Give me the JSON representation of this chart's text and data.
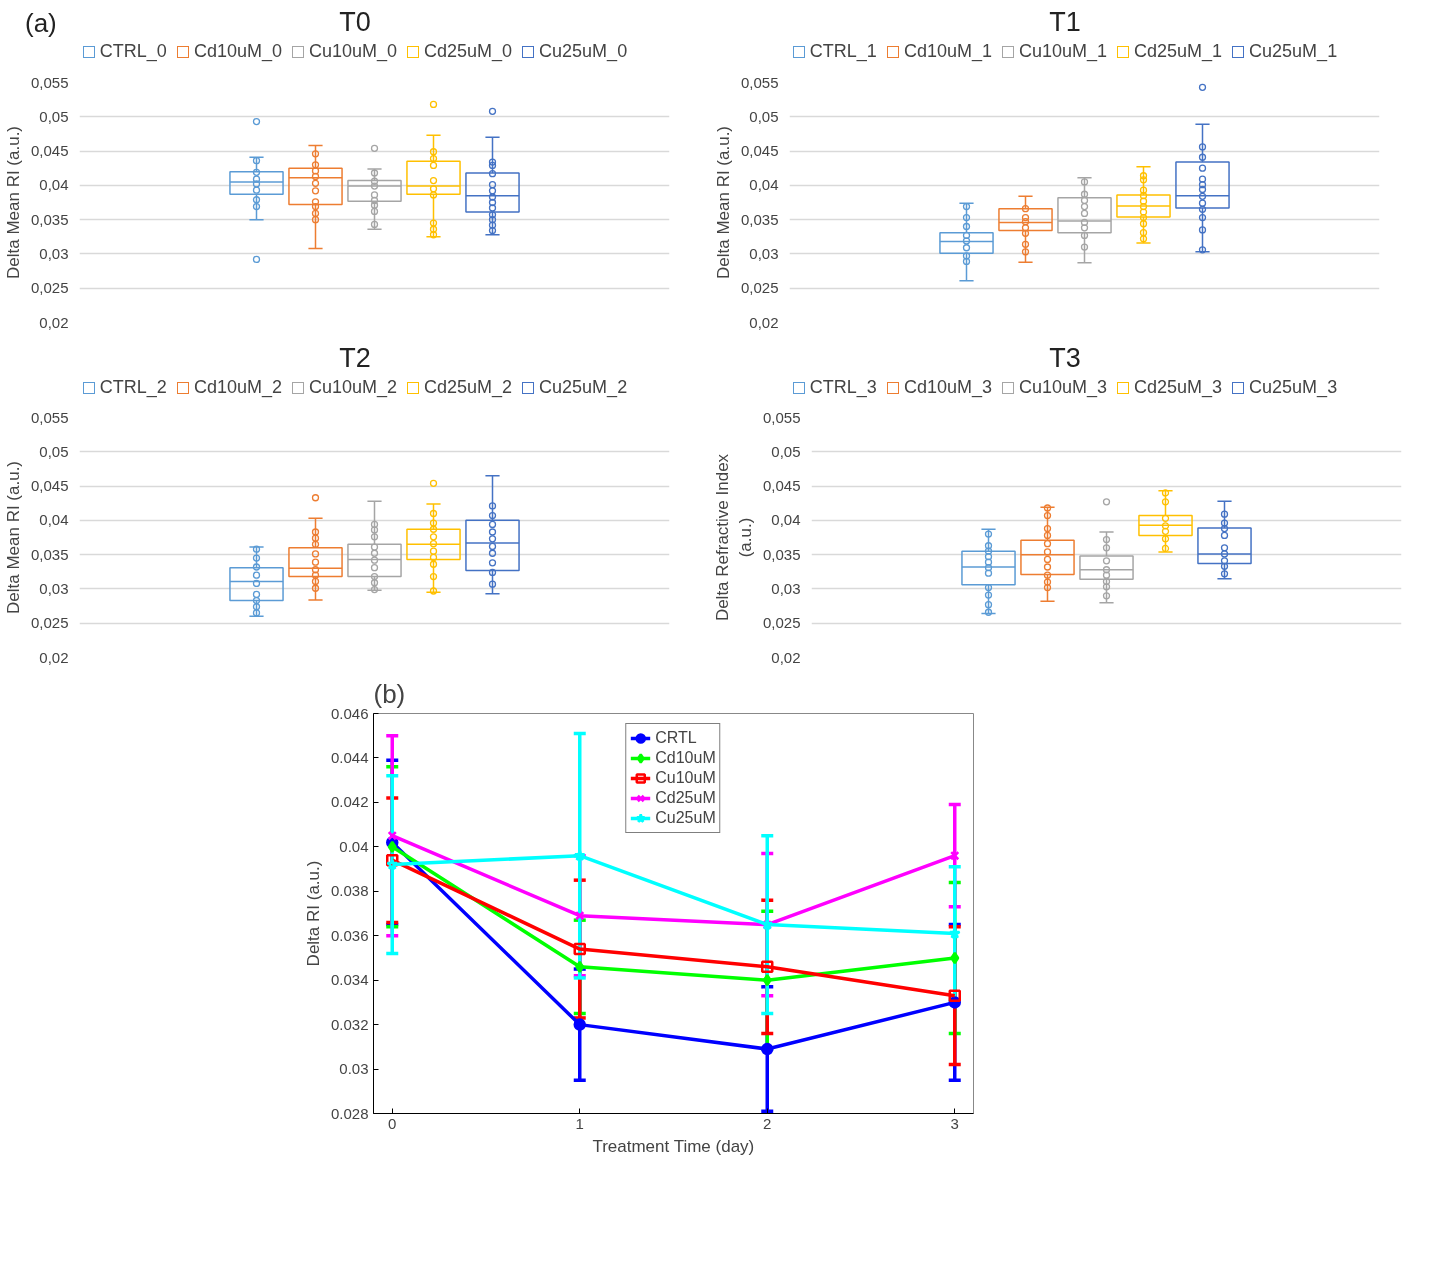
{
  "chart_data": [
    {
      "type": "box",
      "title": "T0",
      "annotations": [
        "(a)"
      ],
      "ylabel": "Delta Mean RI (a.u.)",
      "categories": [
        null
      ],
      "ylim": [
        0.02,
        0.055
      ],
      "yticks": [
        {
          "value": 0.02,
          "label": "0,02"
        },
        {
          "value": 0.025,
          "label": "0,025"
        },
        {
          "value": 0.03,
          "label": "0,03"
        },
        {
          "value": 0.035,
          "label": "0,035"
        },
        {
          "value": 0.04,
          "label": "0,04"
        },
        {
          "value": 0.045,
          "label": "0,045"
        },
        {
          "value": 0.05,
          "label": "0,05"
        },
        {
          "value": 0.055,
          "label": "0,055"
        }
      ],
      "tick_labels": "y",
      "grid": "y",
      "legend": "top",
      "marker": "circle",
      "series": [
        {
          "name": "CTRL_0",
          "color": "#5b9bd5",
          "boxes": [
            {
              "low": 0.035,
              "q1": 0.0387,
              "median": 0.0405,
              "q3": 0.042,
              "high": 0.0441,
              "outliers": [
                0.0493,
                0.0292
              ]
            }
          ]
        },
        {
          "type": "scatter",
          "color": "#5b9bd5",
          "x": [
            null,
            null,
            null,
            null,
            null,
            null,
            null
          ],
          "values": [
            0.0436,
            0.0419,
            0.0409,
            0.0402,
            0.0393,
            0.0379,
            0.0369
          ]
        },
        {
          "name": "Cd10uM_0",
          "color": "#ed7d31",
          "boxes": [
            {
              "low": 0.0308,
              "q1": 0.0372,
              "median": 0.0411,
              "q3": 0.0425,
              "high": 0.0458
            }
          ]
        },
        {
          "type": "scatter",
          "color": "#ed7d31",
          "x": [
            null,
            null,
            null,
            null,
            null,
            null,
            null,
            null,
            null,
            null
          ],
          "values": [
            0.0446,
            0.043,
            0.0421,
            0.0413,
            0.0403,
            0.0392,
            0.0376,
            0.0369,
            0.0359,
            0.035
          ]
        },
        {
          "name": "Cu10uM_0",
          "color": "#a5a5a5",
          "boxes": [
            {
              "low": 0.0336,
              "q1": 0.0377,
              "median": 0.0399,
              "q3": 0.0407,
              "high": 0.0424,
              "outliers": [
                0.0454
              ]
            }
          ]
        },
        {
          "type": "scatter",
          "color": "#a5a5a5",
          "x": [
            null,
            null,
            null,
            null,
            null,
            null,
            null,
            null
          ],
          "values": [
            0.0418,
            0.0406,
            0.0399,
            0.0386,
            0.0378,
            0.0371,
            0.0362,
            0.0343
          ]
        },
        {
          "name": "Cd25uM_0",
          "color": "#ffc000",
          "boxes": [
            {
              "low": 0.0325,
              "q1": 0.0387,
              "median": 0.0399,
              "q3": 0.0435,
              "high": 0.0473,
              "outliers": [
                0.0518
              ]
            }
          ]
        },
        {
          "type": "scatter",
          "color": "#ffc000",
          "x": [
            null,
            null,
            null,
            null,
            null,
            null,
            null,
            null,
            null
          ],
          "values": [
            0.0449,
            0.0439,
            0.0429,
            0.0407,
            0.0395,
            0.0386,
            0.0345,
            0.0336,
            0.0328
          ]
        },
        {
          "name": "Cu25uM_0",
          "color": "#4472c4",
          "boxes": [
            {
              "low": 0.0328,
              "q1": 0.0361,
              "median": 0.0385,
              "q3": 0.0418,
              "high": 0.047,
              "outliers": [
                0.0508
              ]
            }
          ]
        },
        {
          "type": "scatter",
          "color": "#4472c4",
          "x": [
            null,
            null,
            null,
            null,
            null,
            null,
            null,
            null,
            null,
            null,
            null,
            null
          ],
          "values": [
            0.0434,
            0.0429,
            0.0417,
            0.0401,
            0.0392,
            0.0383,
            0.0375,
            0.0367,
            0.0357,
            0.035,
            0.0342,
            0.0334
          ]
        }
      ]
    },
    {
      "type": "box",
      "title": "T1",
      "ylabel": "Delta Mean RI (a.u.)",
      "categories": [
        null
      ],
      "ylim": [
        0.02,
        0.055
      ],
      "yticks": [
        {
          "value": 0.02,
          "label": "0,02"
        },
        {
          "value": 0.025,
          "label": "0,025"
        },
        {
          "value": 0.03,
          "label": "0,03"
        },
        {
          "value": 0.035,
          "label": "0,035"
        },
        {
          "value": 0.04,
          "label": "0,04"
        },
        {
          "value": 0.045,
          "label": "0,045"
        },
        {
          "value": 0.05,
          "label": "0,05"
        },
        {
          "value": 0.055,
          "label": "0,055"
        }
      ],
      "tick_labels": "y",
      "grid": "y",
      "legend": "top",
      "marker": "circle",
      "series": [
        {
          "name": "CTRL_1",
          "color": "#5b9bd5",
          "boxes": [
            {
              "low": 0.0261,
              "q1": 0.0301,
              "median": 0.0318,
              "q3": 0.0331,
              "high": 0.0374
            }
          ]
        },
        {
          "type": "scatter",
          "color": "#5b9bd5",
          "x": [
            null,
            null,
            null,
            null,
            null,
            null,
            null,
            null
          ],
          "values": [
            0.0369,
            0.0353,
            0.034,
            0.0327,
            0.0319,
            0.0309,
            0.0297,
            0.0289
          ]
        },
        {
          "name": "Cd10uM_1",
          "color": "#ed7d31",
          "boxes": [
            {
              "low": 0.0288,
              "q1": 0.0334,
              "median": 0.0346,
              "q3": 0.0366,
              "high": 0.0384
            }
          ]
        },
        {
          "type": "scatter",
          "color": "#ed7d31",
          "x": [
            null,
            null,
            null,
            null,
            null,
            null,
            null
          ],
          "values": [
            0.0366,
            0.0353,
            0.0347,
            0.0338,
            0.033,
            0.0314,
            0.0303
          ]
        },
        {
          "name": "Cu10uM_1",
          "color": "#a5a5a5",
          "boxes": [
            {
              "low": 0.0287,
              "q1": 0.0331,
              "median": 0.0348,
              "q3": 0.0382,
              "high": 0.0411
            }
          ]
        },
        {
          "type": "scatter",
          "color": "#a5a5a5",
          "x": [
            null,
            null,
            null,
            null,
            null,
            null,
            null,
            null,
            null
          ],
          "values": [
            0.0405,
            0.0387,
            0.0378,
            0.0369,
            0.0359,
            0.0346,
            0.0338,
            0.0327,
            0.031
          ]
        },
        {
          "name": "Cd25uM_1",
          "color": "#ffc000",
          "boxes": [
            {
              "low": 0.0316,
              "q1": 0.0354,
              "median": 0.037,
              "q3": 0.0386,
              "high": 0.0427
            }
          ]
        },
        {
          "type": "scatter",
          "color": "#ffc000",
          "x": [
            null,
            null,
            null,
            null,
            null,
            null,
            null,
            null,
            null,
            null,
            null
          ],
          "values": [
            0.0414,
            0.0408,
            0.0393,
            0.0385,
            0.0377,
            0.0369,
            0.0361,
            0.0353,
            0.0344,
            0.0331,
            0.0322
          ]
        },
        {
          "name": "Cu25uM_1",
          "color": "#4472c4",
          "boxes": [
            {
              "low": 0.0303,
              "q1": 0.0367,
              "median": 0.0385,
              "q3": 0.0434,
              "high": 0.0489,
              "outliers": [
                0.0543
              ]
            }
          ]
        },
        {
          "type": "scatter",
          "color": "#4472c4",
          "x": [
            null,
            null,
            null,
            null,
            null,
            null,
            null,
            null,
            null,
            null,
            null,
            null
          ],
          "values": [
            0.0456,
            0.0441,
            0.0425,
            0.0409,
            0.0401,
            0.0394,
            0.0384,
            0.0374,
            0.0365,
            0.0353,
            0.0335,
            0.0306
          ]
        }
      ]
    },
    {
      "type": "box",
      "title": "T2",
      "ylabel": "Delta Mean RI (a.u.)",
      "categories": [
        null
      ],
      "ylim": [
        0.02,
        0.055
      ],
      "yticks": [
        {
          "value": 0.02,
          "label": "0,02"
        },
        {
          "value": 0.025,
          "label": "0,025"
        },
        {
          "value": 0.03,
          "label": "0,03"
        },
        {
          "value": 0.035,
          "label": "0,035"
        },
        {
          "value": 0.04,
          "label": "0,04"
        },
        {
          "value": 0.045,
          "label": "0,045"
        },
        {
          "value": 0.05,
          "label": "0,05"
        },
        {
          "value": 0.055,
          "label": "0,055"
        }
      ],
      "tick_labels": "y",
      "grid": "y",
      "legend": "top",
      "marker": "circle",
      "series": [
        {
          "name": "CTRL_2",
          "color": "#5b9bd5",
          "boxes": [
            {
              "low": 0.026,
              "q1": 0.0283,
              "median": 0.0311,
              "q3": 0.0331,
              "high": 0.0361
            }
          ]
        },
        {
          "type": "scatter",
          "color": "#5b9bd5",
          "x": [
            null,
            null,
            null,
            null,
            null,
            null,
            null,
            null,
            null
          ],
          "values": [
            0.0358,
            0.0345,
            0.0332,
            0.032,
            0.0308,
            0.0292,
            0.0283,
            0.0274,
            0.0265
          ]
        },
        {
          "name": "Cd10uM_2",
          "color": "#ed7d31",
          "boxes": [
            {
              "low": 0.0284,
              "q1": 0.0318,
              "median": 0.033,
              "q3": 0.036,
              "high": 0.0403,
              "outliers": [
                0.0433
              ]
            }
          ]
        },
        {
          "type": "scatter",
          "color": "#ed7d31",
          "x": [
            null,
            null,
            null,
            null,
            null,
            null,
            null,
            null,
            null
          ],
          "values": [
            0.0383,
            0.0374,
            0.0365,
            0.0351,
            0.0339,
            0.0328,
            0.032,
            0.0311,
            0.0301
          ]
        },
        {
          "name": "Cu10uM_2",
          "color": "#a5a5a5",
          "boxes": [
            {
              "low": 0.0298,
              "q1": 0.0318,
              "median": 0.0343,
              "q3": 0.0365,
              "high": 0.0428
            }
          ]
        },
        {
          "type": "scatter",
          "color": "#a5a5a5",
          "x": [
            null,
            null,
            null,
            null,
            null,
            null,
            null,
            null,
            null,
            null
          ],
          "values": [
            0.0394,
            0.0386,
            0.0376,
            0.0361,
            0.0352,
            0.0342,
            0.0331,
            0.0318,
            0.0309,
            0.0299
          ]
        },
        {
          "name": "Cd25uM_2",
          "color": "#ffc000",
          "boxes": [
            {
              "low": 0.0295,
              "q1": 0.0343,
              "median": 0.0365,
              "q3": 0.0387,
              "high": 0.0424,
              "outliers": [
                0.0454
              ]
            }
          ]
        },
        {
          "type": "scatter",
          "color": "#ffc000",
          "x": [
            null,
            null,
            null,
            null,
            null,
            null,
            null,
            null,
            null,
            null
          ],
          "values": [
            0.041,
            0.0396,
            0.0387,
            0.0376,
            0.0366,
            0.0355,
            0.0346,
            0.0336,
            0.0318,
            0.0297
          ]
        },
        {
          "name": "Cu25uM_2",
          "color": "#4472c4",
          "boxes": [
            {
              "low": 0.0293,
              "q1": 0.0327,
              "median": 0.0367,
              "q3": 0.04,
              "high": 0.0465
            }
          ]
        },
        {
          "type": "scatter",
          "color": "#4472c4",
          "x": [
            null,
            null,
            null,
            null,
            null,
            null,
            null,
            null,
            null,
            null
          ],
          "values": [
            0.0421,
            0.0407,
            0.0394,
            0.0383,
            0.0373,
            0.0362,
            0.0352,
            0.0338,
            0.0324,
            0.0307
          ]
        }
      ]
    },
    {
      "type": "box",
      "title": "T3",
      "ylabel": "Delta Refractive Index\n(a.u.)",
      "categories": [
        null
      ],
      "ylim": [
        0.02,
        0.055
      ],
      "yticks": [
        {
          "value": 0.02,
          "label": "0,02"
        },
        {
          "value": 0.025,
          "label": "0,025"
        },
        {
          "value": 0.03,
          "label": "0,03"
        },
        {
          "value": 0.035,
          "label": "0,035"
        },
        {
          "value": 0.04,
          "label": "0,04"
        },
        {
          "value": 0.045,
          "label": "0,045"
        },
        {
          "value": 0.05,
          "label": "0,05"
        },
        {
          "value": 0.055,
          "label": "0,055"
        }
      ],
      "tick_labels": "y",
      "grid": "y",
      "legend": "top",
      "marker": "circle",
      "series": [
        {
          "name": "CTRL_3",
          "color": "#5b9bd5",
          "boxes": [
            {
              "low": 0.0264,
              "q1": 0.0306,
              "median": 0.0332,
              "q3": 0.0355,
              "high": 0.0387
            }
          ]
        },
        {
          "type": "scatter",
          "color": "#5b9bd5",
          "x": [
            null,
            null,
            null,
            null,
            null,
            null,
            null,
            null,
            null,
            null,
            null
          ],
          "values": [
            0.038,
            0.0363,
            0.0355,
            0.0347,
            0.0339,
            0.0331,
            0.0323,
            0.0302,
            0.0291,
            0.0277,
            0.0266
          ]
        },
        {
          "name": "Cd10uM_3",
          "color": "#ed7d31",
          "boxes": [
            {
              "low": 0.0282,
              "q1": 0.0321,
              "median": 0.035,
              "q3": 0.0371,
              "high": 0.0419
            }
          ]
        },
        {
          "type": "scatter",
          "color": "#ed7d31",
          "x": [
            null,
            null,
            null,
            null,
            null,
            null,
            null,
            null,
            null,
            null,
            null
          ],
          "values": [
            0.0418,
            0.0407,
            0.0388,
            0.0378,
            0.0366,
            0.0354,
            0.0343,
            0.0332,
            0.032,
            0.031,
            0.0302
          ]
        },
        {
          "name": "Cu10uM_3",
          "color": "#a5a5a5",
          "boxes": [
            {
              "low": 0.028,
              "q1": 0.0314,
              "median": 0.0328,
              "q3": 0.0348,
              "high": 0.0383,
              "outliers": [
                0.0427
              ]
            }
          ]
        },
        {
          "type": "scatter",
          "color": "#a5a5a5",
          "x": [
            null,
            null,
            null,
            null,
            null,
            null,
            null,
            null
          ],
          "values": [
            0.0372,
            0.036,
            0.0341,
            0.0328,
            0.032,
            0.0311,
            0.0303,
            0.029
          ]
        },
        {
          "name": "Cd25uM_3",
          "color": "#ffc000",
          "boxes": [
            {
              "low": 0.0354,
              "q1": 0.0378,
              "median": 0.0393,
              "q3": 0.0407,
              "high": 0.0443
            }
          ]
        },
        {
          "type": "scatter",
          "color": "#ffc000",
          "x": [
            null,
            null,
            null,
            null,
            null,
            null,
            null
          ],
          "values": [
            0.044,
            0.0427,
            0.0403,
            0.0392,
            0.0384,
            0.0373,
            0.0359
          ]
        },
        {
          "name": "Cu25uM_3",
          "color": "#4472c4",
          "boxes": [
            {
              "low": 0.0315,
              "q1": 0.0337,
              "median": 0.0351,
              "q3": 0.0389,
              "high": 0.0428
            }
          ]
        },
        {
          "type": "scatter",
          "color": "#4472c4",
          "x": [
            null,
            null,
            null,
            null,
            null,
            null,
            null,
            null,
            null
          ],
          "values": [
            0.0409,
            0.0396,
            0.0388,
            0.0378,
            0.036,
            0.0351,
            0.0341,
            0.0333,
            0.0322
          ]
        }
      ]
    },
    {
      "type": "line",
      "annotations": [
        "(b)"
      ],
      "xlabel": "Treatment Time (day)",
      "ylabel": "Delta RI (a.u.)",
      "x": [
        0,
        1,
        2,
        3
      ],
      "xlim": [
        -0.1,
        3.1
      ],
      "xticks": [
        0,
        1,
        2,
        3
      ],
      "ylim": [
        0.028,
        0.046
      ],
      "yticks": [
        0.028,
        0.03,
        0.032,
        0.034,
        0.036,
        0.038,
        0.04,
        0.042,
        0.044,
        0.046
      ],
      "legend": "top",
      "line_style": "solid",
      "series": [
        {
          "name": "CRTL",
          "color": "#0000ff",
          "marker": "circle",
          "values": [
            0.0402,
            0.032,
            0.0309,
            0.033
          ],
          "errors": [
            0.0037,
            0.0025,
            0.0028,
            0.0035
          ]
        },
        {
          "name": "Cd10uM",
          "color": "#00ff00",
          "marker": "diamond",
          "values": [
            0.04,
            0.0346,
            0.034,
            0.035
          ],
          "errors": [
            0.0036,
            0.0021,
            0.0031,
            0.0034
          ]
        },
        {
          "name": "Cu10uM",
          "color": "#ff0000",
          "marker": "square",
          "values": [
            0.0394,
            0.0354,
            0.0346,
            0.0333
          ],
          "errors": [
            0.0028,
            0.0031,
            0.003,
            0.0031
          ]
        },
        {
          "name": "Cd25uM",
          "color": "#ff00ff",
          "marker": "cross",
          "values": [
            0.0405,
            0.0369,
            0.0365,
            0.0396
          ],
          "errors": [
            0.0045,
            0.0027,
            0.0032,
            0.0023
          ]
        },
        {
          "name": "Cu25uM",
          "color": "#00ffff",
          "marker": "star",
          "values": [
            0.0392,
            0.0396,
            0.0365,
            0.0361
          ],
          "errors": [
            0.004,
            0.0055,
            0.004,
            0.003
          ]
        }
      ]
    }
  ]
}
